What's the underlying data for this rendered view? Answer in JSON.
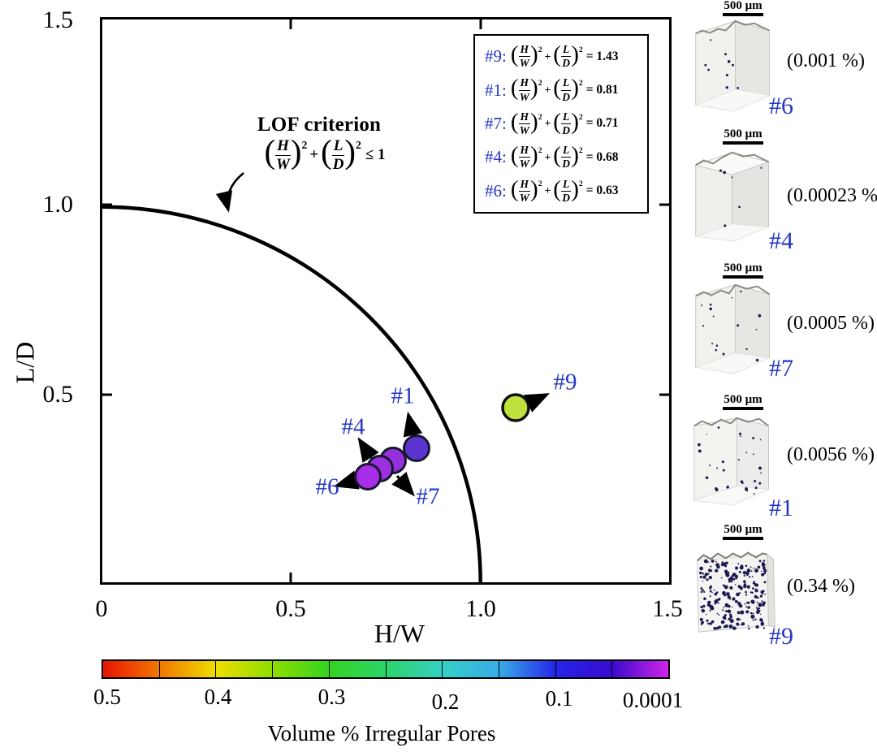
{
  "plot": {
    "x_ticks": [
      "0",
      "0.5",
      "1.0",
      "1.5"
    ],
    "y_ticks": [
      "1.5",
      "1.0",
      "0.5"
    ],
    "x_label": "H/W",
    "y_label": "L/D"
  },
  "criterion": {
    "title": "LOF criterion",
    "suffix": "≤ 1"
  },
  "eq": {
    "h": "H",
    "w": "W",
    "l": "L",
    "d": "D",
    "plus": "+",
    "sq": "2"
  },
  "legend": {
    "rows": [
      {
        "id": "#9:",
        "value": "= 1.43"
      },
      {
        "id": "#1:",
        "value": "= 0.81"
      },
      {
        "id": "#7:",
        "value": "= 0.71"
      },
      {
        "id": "#4:",
        "value": "= 0.68"
      },
      {
        "id": "#6:",
        "value": "= 0.63"
      }
    ]
  },
  "point_labels": {
    "p1": "#1",
    "p4": "#4",
    "p6": "#6",
    "p7": "#7",
    "p9": "#9"
  },
  "colorbar": {
    "tick_labels": [
      "0.5",
      "0.4",
      "0.3",
      "0.2",
      "0.1",
      "0.0001"
    ],
    "title": "Volume % Irregular Pores",
    "stops": [
      "#e81400",
      "#f07800",
      "#eedd00",
      "#8fdd00",
      "#33d420",
      "#2cd46a",
      "#35cfc4",
      "#38ace8",
      "#2525e8",
      "#3a0ad0",
      "#d024e8"
    ]
  },
  "samples": [
    {
      "id": "#6",
      "porosity": "(0.001 %)",
      "scale_bar": "500 μm"
    },
    {
      "id": "#4",
      "porosity": "(0.00023 %)",
      "scale_bar": "500 μm"
    },
    {
      "id": "#7",
      "porosity": "(0.0005 %)",
      "scale_bar": "500 μm"
    },
    {
      "id": "#1",
      "porosity": "(0.0056 %)",
      "scale_bar": "500 μm"
    },
    {
      "id": "#9",
      "porosity": "(0.34 %)",
      "scale_bar": "500 μm"
    }
  ],
  "chart_data": {
    "type": "scatter",
    "xlabel": "H/W",
    "ylabel": "L/D",
    "xlim": [
      0,
      1.5
    ],
    "ylim": [
      0,
      1.5
    ],
    "criterion_curve": "(H/W)^2 + (L/D)^2 = 1 (quarter circle, radius 1, LOF criterion boundary)",
    "criterion_text": "LOF criterion (H/W)^2 + (L/D)^2 ≤ 1",
    "points": [
      {
        "label": "#9",
        "x": 1.09,
        "y": 0.47,
        "lof_value": 1.43,
        "volume_pct_irregular_pores": 0.34,
        "color": "#bfe23f"
      },
      {
        "label": "#1",
        "x": 0.83,
        "y": 0.36,
        "lof_value": 0.81,
        "volume_pct_irregular_pores": 0.0056,
        "color": "#5b35cf"
      },
      {
        "label": "#7",
        "x": 0.77,
        "y": 0.33,
        "lof_value": 0.71,
        "volume_pct_irregular_pores": 0.0005,
        "color": "#9530dd"
      },
      {
        "label": "#4",
        "x": 0.74,
        "y": 0.31,
        "lof_value": 0.68,
        "volume_pct_irregular_pores": 0.00023,
        "color": "#9b30e0"
      },
      {
        "label": "#6",
        "x": 0.705,
        "y": 0.285,
        "lof_value": 0.63,
        "volume_pct_irregular_pores": 0.001,
        "color": "#a82de8"
      }
    ],
    "colorbar": {
      "label": "Volume % Irregular Pores",
      "tick_values": [
        0.5,
        0.4,
        0.3,
        0.2,
        0.1,
        0.0001
      ],
      "scale": "rainbow red (0.5) to purple/magenta (0.0001)"
    },
    "legend_position": "upper right inside plot",
    "grid": false
  }
}
